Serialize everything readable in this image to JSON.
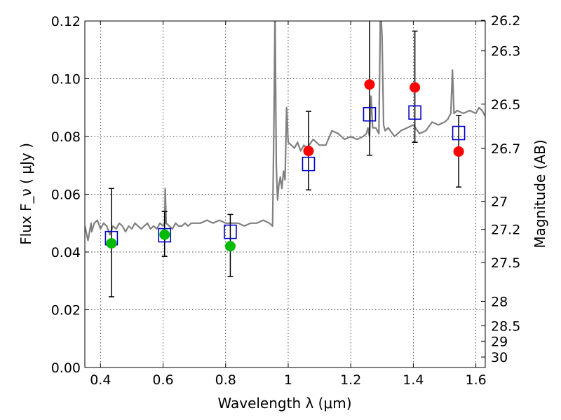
{
  "chart_data": {
    "type": "scatter",
    "xlabel": "Wavelength  λ (μm)",
    "ylabel": "Flux  F_ν  ( μJy )",
    "y2label": "Magnitude (AB)",
    "xlim": [
      0.35,
      1.63
    ],
    "ylim": [
      0.0,
      0.12
    ],
    "grid": true,
    "x_ticks": [
      0.4,
      0.6,
      0.8,
      1.0,
      1.2,
      1.4,
      1.6
    ],
    "x_tick_labels": [
      "0.4",
      "0.6",
      "0.8",
      "1",
      "1.2",
      "1.4",
      "1.6"
    ],
    "y_ticks": [
      0.0,
      0.02,
      0.04,
      0.06,
      0.08,
      0.1,
      0.12
    ],
    "y_tick_labels": [
      "0.00",
      "0.02",
      "0.04",
      "0.06",
      "0.08",
      "0.10",
      "0.12"
    ],
    "mag_ticks": [
      26.2,
      26.3,
      26.5,
      26.7,
      27,
      27.2,
      27.5,
      28,
      28.5,
      29,
      30
    ],
    "mag_tick_labels": [
      "26.2",
      "26.3",
      "26.5",
      "26.7",
      "27",
      "27.2",
      "27.5",
      "28",
      "28.5",
      "29",
      "30"
    ],
    "colors": {
      "spectrum": "#808080",
      "detection": "#ff0000",
      "nondetection": "#00bb00",
      "model": "#0000cc",
      "errorbar": "#000000"
    },
    "spectrum": {
      "x": [
        0.35,
        0.36,
        0.37,
        0.372,
        0.38,
        0.39,
        0.4,
        0.41,
        0.42,
        0.43,
        0.44,
        0.45,
        0.46,
        0.47,
        0.48,
        0.49,
        0.5,
        0.51,
        0.52,
        0.53,
        0.54,
        0.55,
        0.56,
        0.57,
        0.58,
        0.59,
        0.6,
        0.605,
        0.607,
        0.61,
        0.62,
        0.63,
        0.64,
        0.65,
        0.66,
        0.67,
        0.68,
        0.69,
        0.7,
        0.72,
        0.74,
        0.76,
        0.78,
        0.8,
        0.82,
        0.84,
        0.86,
        0.88,
        0.9,
        0.92,
        0.94,
        0.95,
        0.955,
        0.958,
        0.962,
        0.966,
        0.97,
        0.975,
        0.98,
        0.985,
        0.99,
        0.995,
        1.0,
        1.01,
        1.02,
        1.03,
        1.04,
        1.05,
        1.06,
        1.08,
        1.1,
        1.12,
        1.14,
        1.16,
        1.18,
        1.2,
        1.22,
        1.24,
        1.25,
        1.255,
        1.26,
        1.265,
        1.27,
        1.28,
        1.29,
        1.295,
        1.3,
        1.305,
        1.31,
        1.32,
        1.34,
        1.36,
        1.38,
        1.4,
        1.42,
        1.44,
        1.46,
        1.48,
        1.5,
        1.51,
        1.52,
        1.525,
        1.53,
        1.54,
        1.56,
        1.58,
        1.6,
        1.61,
        1.62,
        1.63
      ],
      "y": [
        0.049,
        0.044,
        0.05,
        0.047,
        0.05,
        0.051,
        0.048,
        0.05,
        0.049,
        0.046,
        0.049,
        0.048,
        0.05,
        0.049,
        0.047,
        0.049,
        0.048,
        0.05,
        0.049,
        0.048,
        0.049,
        0.05,
        0.048,
        0.049,
        0.048,
        0.05,
        0.049,
        0.05,
        0.062,
        0.05,
        0.049,
        0.048,
        0.05,
        0.049,
        0.049,
        0.05,
        0.049,
        0.05,
        0.05,
        0.05,
        0.051,
        0.05,
        0.051,
        0.05,
        0.05,
        0.05,
        0.049,
        0.05,
        0.05,
        0.051,
        0.05,
        0.049,
        0.09,
        0.125,
        0.07,
        0.058,
        0.063,
        0.066,
        0.062,
        0.068,
        0.065,
        0.09,
        0.078,
        0.077,
        0.076,
        0.078,
        0.075,
        0.077,
        0.076,
        0.079,
        0.077,
        0.077,
        0.082,
        0.081,
        0.079,
        0.08,
        0.079,
        0.08,
        0.081,
        0.083,
        0.08,
        0.094,
        0.083,
        0.083,
        0.081,
        0.125,
        0.115,
        0.084,
        0.082,
        0.083,
        0.08,
        0.082,
        0.083,
        0.084,
        0.081,
        0.082,
        0.085,
        0.084,
        0.085,
        0.086,
        0.088,
        0.103,
        0.088,
        0.089,
        0.088,
        0.089,
        0.088,
        0.09,
        0.089,
        0.087
      ]
    },
    "series": [
      {
        "name": "",
        "marker": "circle",
        "points": [
          {
            "x": 0.435,
            "y": 0.043,
            "err_low": 0.0245,
            "err_high": 0.062,
            "color": "#00bb00"
          },
          {
            "x": 0.605,
            "y": 0.046,
            "err_low": 0.0385,
            "err_high": 0.054,
            "color": "#00bb00"
          },
          {
            "x": 0.815,
            "y": 0.042,
            "err_low": 0.0315,
            "err_high": 0.053,
            "color": "#00bb00"
          },
          {
            "x": 1.065,
            "y": 0.075,
            "err_low": 0.0615,
            "err_high": 0.0887,
            "color": "#ff0000"
          },
          {
            "x": 1.26,
            "y": 0.098,
            "err_low": 0.0735,
            "err_high": 0.124,
            "color": "#ff0000"
          },
          {
            "x": 1.405,
            "y": 0.097,
            "err_low": 0.078,
            "err_high": 0.1165,
            "color": "#ff0000"
          },
          {
            "x": 1.545,
            "y": 0.0748,
            "err_low": 0.0625,
            "err_high": 0.0873,
            "color": "#ff0000"
          }
        ]
      },
      {
        "name": "",
        "marker": "square",
        "points": [
          {
            "x": 0.435,
            "y": 0.0448
          },
          {
            "x": 0.605,
            "y": 0.0458
          },
          {
            "x": 0.815,
            "y": 0.047
          },
          {
            "x": 1.065,
            "y": 0.0705
          },
          {
            "x": 1.26,
            "y": 0.0877
          },
          {
            "x": 1.405,
            "y": 0.0883
          },
          {
            "x": 1.545,
            "y": 0.0812
          }
        ]
      }
    ]
  }
}
